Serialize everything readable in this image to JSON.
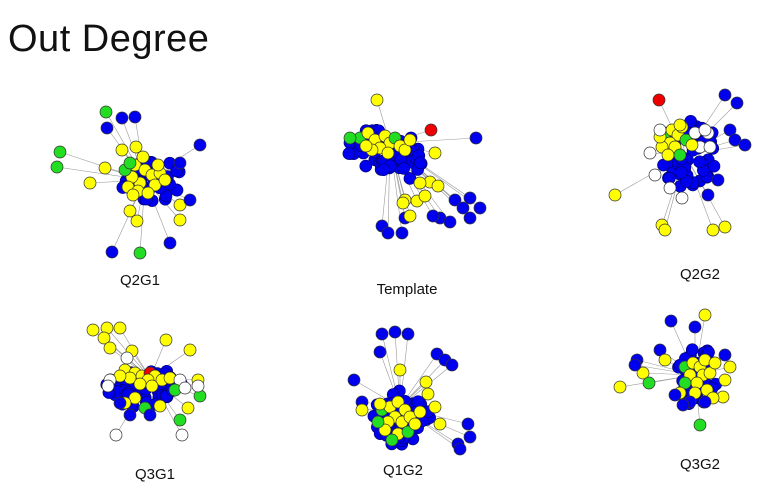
{
  "slide": {
    "title": "Out Degree"
  },
  "colors": {
    "blue": "#0000ee",
    "yellow": "#ffff00",
    "green": "#22dd22",
    "red": "#ee0000",
    "white": "#ffffff",
    "edge": "#9a9a9a",
    "outline": "#333333"
  },
  "graphs": [
    {
      "id": "q2g1",
      "label": "Q2G1"
    },
    {
      "id": "template",
      "label": "Template"
    },
    {
      "id": "q2g2",
      "label": "Q2G2"
    },
    {
      "id": "q3g1",
      "label": "Q3G1"
    },
    {
      "id": "q1g2",
      "label": "Q1G2"
    },
    {
      "id": "q3g2",
      "label": "Q3G2"
    }
  ]
}
